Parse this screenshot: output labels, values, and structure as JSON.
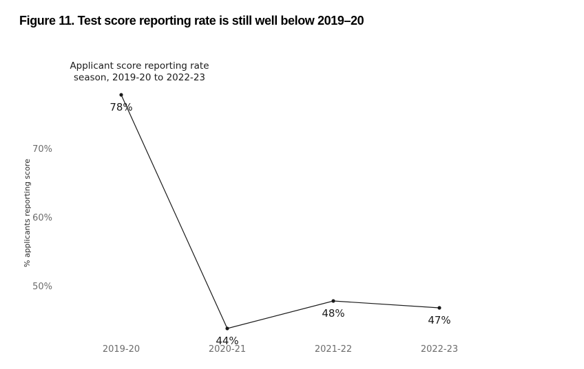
{
  "figure_title": "Figure 11. Test score reporting rate is still well below 2019–20",
  "colors": {
    "title_text": "#000000",
    "chart_text": "#1a1a1a",
    "tick_text": "#6b6b6b",
    "line": "#1a1a1a",
    "background": "#ffffff"
  },
  "chart_data": {
    "type": "line",
    "title_lines": [
      "Applicant score reporting rate",
      "season, 2019-20 to 2022-23"
    ],
    "categories": [
      "2019-20",
      "2020-21",
      "2021-22",
      "2022-23"
    ],
    "values": [
      78,
      44,
      48,
      47
    ],
    "point_labels": [
      "78%",
      "44%",
      "48%",
      "47%"
    ],
    "series_name": "Applicant score reporting rate",
    "xlabel": "",
    "ylabel": "% applicants reporting score",
    "yticks": [
      {
        "value": 70,
        "label": "70%"
      },
      {
        "value": 60,
        "label": "60%"
      },
      {
        "value": 50,
        "label": "50%"
      }
    ],
    "ylim": [
      41,
      80
    ],
    "grid": false,
    "legend_position": "none",
    "marker": "filled-circle"
  }
}
